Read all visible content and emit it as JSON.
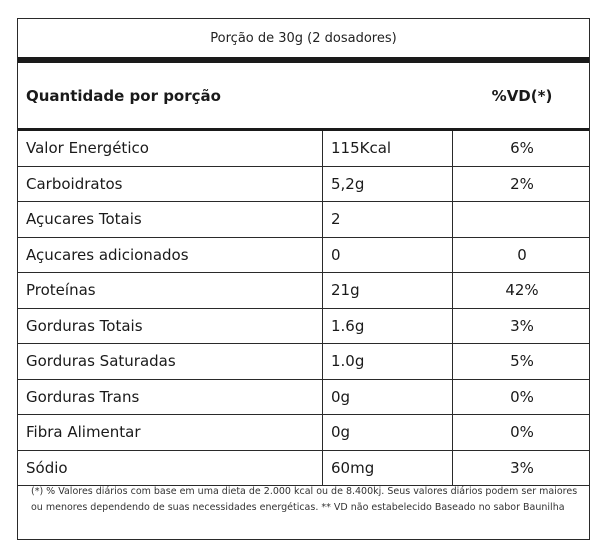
{
  "serving": "Porção de 30g (2 dosadores)",
  "header": {
    "left": "Quantidade por porção",
    "right": "%VD(*)"
  },
  "rows": [
    {
      "name": "Valor Energético",
      "amount": "115Kcal",
      "vd": "6%"
    },
    {
      "name": "Carboidratos",
      "amount": "5,2g",
      "vd": "2%"
    },
    {
      "name": "Açucares Totais",
      "amount": "2",
      "vd": ""
    },
    {
      "name": "Açucares adicionados",
      "amount": "0",
      "vd": "0"
    },
    {
      "name": "Proteínas",
      "amount": "21g",
      "vd": "42%"
    },
    {
      "name": "Gorduras Totais",
      "amount": "1.6g",
      "vd": "3%"
    },
    {
      "name": "Gorduras Saturadas",
      "amount": "1.0g",
      "vd": "5%"
    },
    {
      "name": "Gorduras Trans",
      "amount": "0g",
      "vd": "0%"
    },
    {
      "name": "Fibra Alimentar",
      "amount": "0g",
      "vd": "0%"
    },
    {
      "name": "Sódio",
      "amount": "60mg",
      "vd": "3%"
    }
  ],
  "footnote": "(*) % Valores diários com base em uma dieta de 2.000 kcal ou de 8.400kj. Seus valores diários podem ser maiores ou menores dependendo de suas necessidades energéticas. ** VD não estabelecido Baseado no sabor Baunilha"
}
